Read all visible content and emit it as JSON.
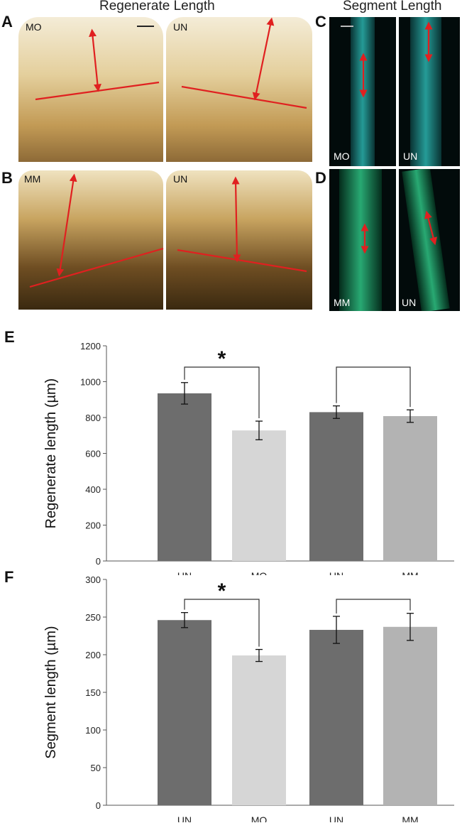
{
  "headers": {
    "regenerate": "Regenerate Length",
    "segment": "Segment Length"
  },
  "panels": {
    "A": {
      "letter": "A",
      "left_label": "MO",
      "right_label": "UN"
    },
    "B": {
      "letter": "B",
      "left_label": "MM",
      "right_label": "UN"
    },
    "C": {
      "letter": "C",
      "left_label": "MO",
      "right_label": "UN"
    },
    "D": {
      "letter": "D",
      "left_label": "MM",
      "right_label": "UN"
    },
    "E": {
      "letter": "E"
    },
    "F": {
      "letter": "F"
    }
  },
  "colors": {
    "dark_bar": "#6d6d6d",
    "light_bar_mo": "#d6d6d6",
    "light_bar_mm": "#b3b3b3",
    "arrow_red": "#e02020",
    "fluoro_cyan": "#28c8c0",
    "fluoro_green": "#30d090"
  },
  "chart_data": [
    {
      "type": "bar",
      "panel": "E",
      "ylabel": "Regenerate length (µm)",
      "categories": [
        "UN",
        "MO",
        "UN",
        "MM"
      ],
      "values": [
        935,
        728,
        830,
        808
      ],
      "errors": [
        60,
        52,
        35,
        35
      ],
      "ylim": [
        0,
        1200
      ],
      "yticks": [
        0,
        200,
        400,
        600,
        800,
        1000,
        1200
      ],
      "significance": [
        {
          "between": [
            0,
            1
          ],
          "label": "*"
        },
        {
          "between": [
            2,
            3
          ],
          "label": ""
        }
      ],
      "grid": false
    },
    {
      "type": "bar",
      "panel": "F",
      "ylabel": "Segment length (µm)",
      "categories": [
        "UN",
        "MO",
        "UN",
        "MM"
      ],
      "values": [
        246,
        199,
        233,
        237
      ],
      "errors": [
        10,
        8,
        18,
        18
      ],
      "ylim": [
        0,
        300
      ],
      "yticks": [
        0,
        50,
        100,
        150,
        200,
        250,
        300
      ],
      "significance": [
        {
          "between": [
            0,
            1
          ],
          "label": "*"
        },
        {
          "between": [
            2,
            3
          ],
          "label": ""
        }
      ],
      "grid": false
    }
  ]
}
